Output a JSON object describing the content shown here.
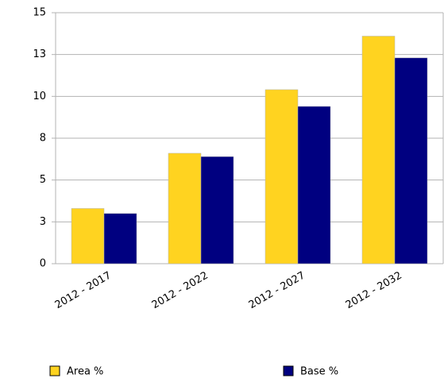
{
  "chart_data": {
    "type": "bar",
    "categories": [
      "2012 - 2017",
      "2012 - 2022",
      "2012 - 2027",
      "2012 - 2032"
    ],
    "series": [
      {
        "name": "Area %",
        "color": "#ffd320",
        "values": [
          3.3,
          6.6,
          10.4,
          13.6
        ]
      },
      {
        "name": "Base %",
        "color": "#000080",
        "values": [
          3.0,
          6.4,
          9.4,
          12.3
        ]
      }
    ],
    "ylim": [
      0,
      15
    ],
    "yticks": [
      0,
      {
        "value": 2.5,
        "label": "3"
      },
      5,
      {
        "value": 7.5,
        "label": "8"
      },
      10,
      {
        "value": 12.5,
        "label": "13"
      },
      15
    ],
    "grid": true,
    "legend": "bottom"
  }
}
